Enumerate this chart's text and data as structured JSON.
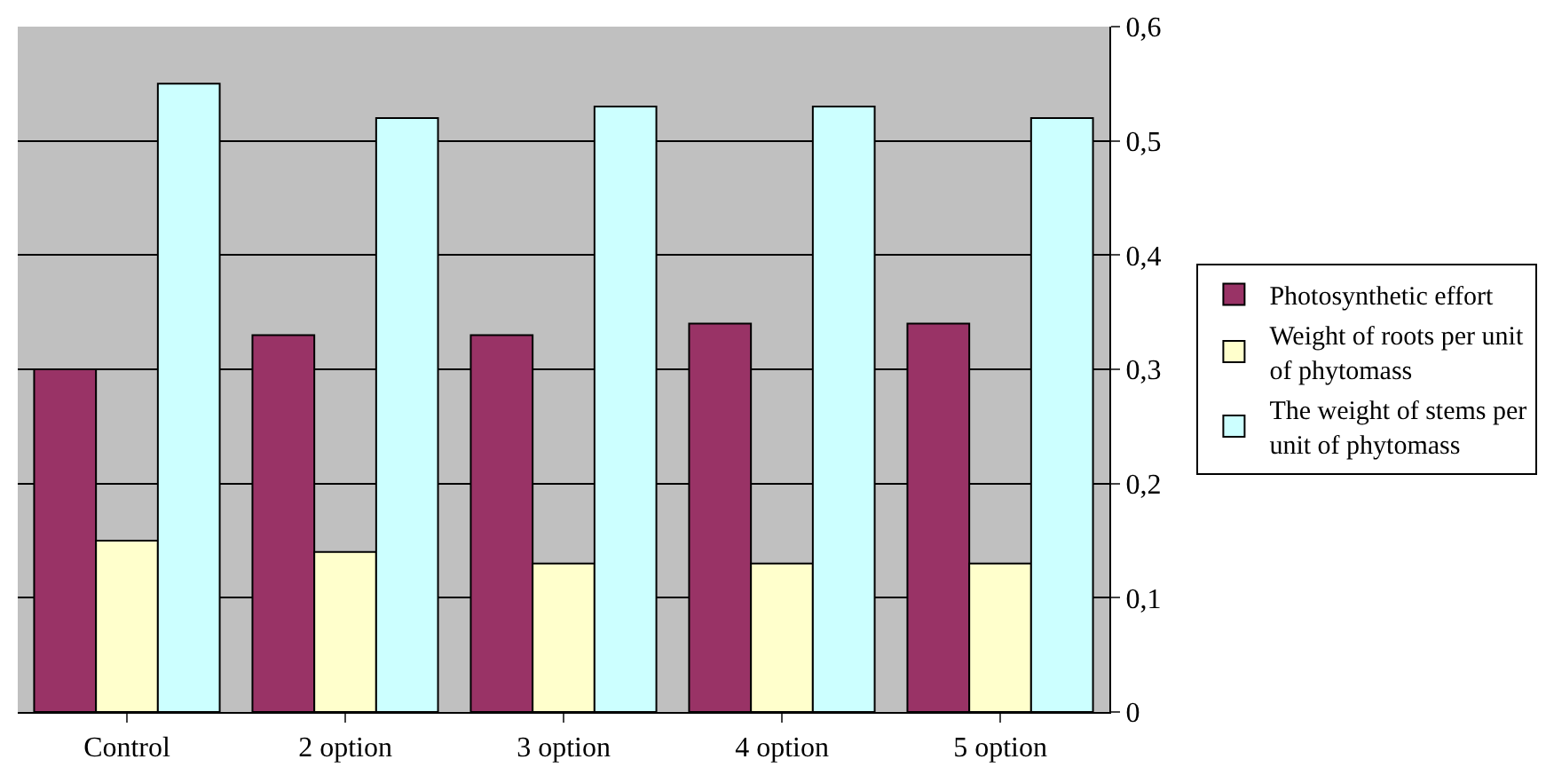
{
  "chart_data": {
    "type": "bar",
    "categories": [
      "Control",
      "2 option",
      "3 option",
      "4 option",
      "5 option"
    ],
    "series": [
      {
        "name": "Photosynthetic effort",
        "color": "#993366",
        "values": [
          0.3,
          0.33,
          0.33,
          0.34,
          0.34
        ]
      },
      {
        "name": "Weight of roots per unit of phytomass",
        "color": "#ffffcc",
        "values": [
          0.15,
          0.14,
          0.13,
          0.13,
          0.13
        ]
      },
      {
        "name": "The weight of stems per unit of phytomass",
        "color": "#ccffff",
        "values": [
          0.55,
          0.52,
          0.53,
          0.53,
          0.52
        ]
      }
    ],
    "ylim": [
      0,
      0.6
    ],
    "yticks": [
      0,
      {
        "value": 0.1,
        "label": "0,1"
      },
      {
        "value": 0.2,
        "label": "0,2"
      },
      {
        "value": 0.3,
        "label": "0,3"
      },
      {
        "value": 0.4,
        "label": "0,4"
      },
      {
        "value": 0.5,
        "label": "0,5"
      },
      {
        "value": 0.6,
        "label": "0,6"
      }
    ],
    "grid": "y",
    "legend": "right"
  }
}
